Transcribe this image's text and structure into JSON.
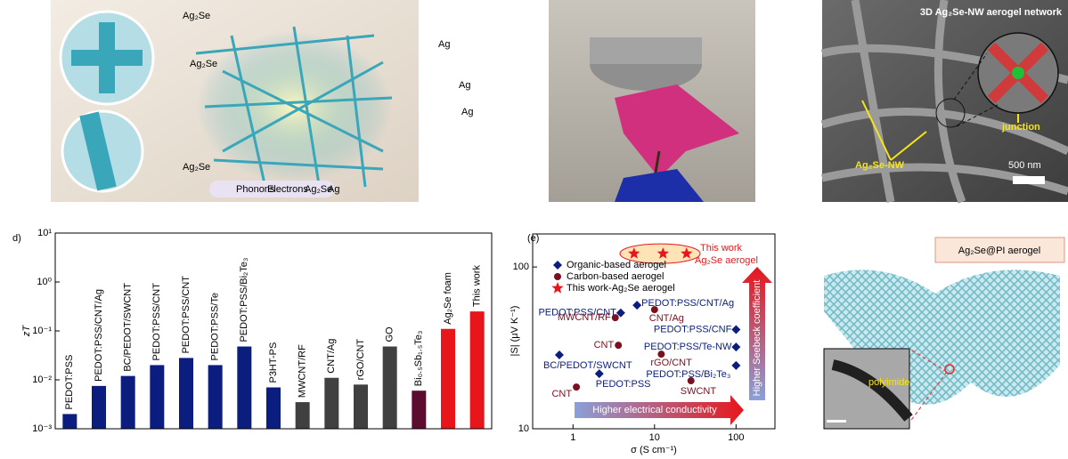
{
  "panels": {
    "a": {
      "labels": [
        "Ag₂Se",
        "Ag₂Se",
        "Ag₂Se",
        "Ag",
        "Ag",
        "Ag"
      ],
      "legend": [
        "Phonons",
        "Electrons",
        "Ag₂Se",
        "Ag"
      ]
    },
    "c": {
      "title": "3D Ag₂Se-NW aerogel network",
      "junction": "junction",
      "nw": "Ag₂Se-NW",
      "scale": "500 nm"
    },
    "f": {
      "title": "Ag₂Se@PI aerogel",
      "inset": "polyimide"
    }
  },
  "chart_data": [
    {
      "type": "bar",
      "panel_label": "d)",
      "ylabel": "zT",
      "ylog": true,
      "categories": [
        "PEDOT:PSS",
        "PEDOT:PSS/CNT/Ag",
        "BC/PEDOT/SWCNT",
        "PEDOT:PSS/CNT",
        "PEDOT:PSS/CNT",
        "PEDOT:PSS/Te",
        "PEDOT:PSS/Bi₂Te₃",
        "P3HT-PS",
        "MWCNT/RF",
        "CNT/Ag",
        "rGO/CNT",
        "GO",
        "Bi₀.₅Sb₁.₅Te₃",
        "Ag₂Se foam",
        "This work"
      ],
      "values": [
        0.002,
        0.0075,
        0.012,
        0.02,
        0.028,
        0.02,
        0.048,
        0.007,
        0.0035,
        0.011,
        0.008,
        0.048,
        0.006,
        0.11,
        0.25
      ],
      "colors": [
        "#0b1d7e",
        "#0b1d7e",
        "#0b1d7e",
        "#0b1d7e",
        "#0b1d7e",
        "#0b1d7e",
        "#0b1d7e",
        "#0b1d7e",
        "#404040",
        "#404040",
        "#404040",
        "#404040",
        "#5c0c2e",
        "#e8161b",
        "#e8161b"
      ],
      "ylim": [
        0.001,
        10
      ],
      "yticks": [
        {
          "value": 0.001,
          "label": "10⁻³"
        },
        {
          "value": 0.01,
          "label": "10⁻²"
        },
        {
          "value": 0.1,
          "label": "10⁻¹"
        },
        {
          "value": 1,
          "label": "10⁰"
        },
        {
          "value": 10,
          "label": "10¹"
        }
      ]
    },
    {
      "type": "scatter",
      "panel_label": "(e)",
      "xlabel": "σ (S cm⁻¹)",
      "ylabel": "|S| (μV K⁻¹)",
      "xlog": true,
      "ylog": true,
      "xlim": [
        0.32,
        300
      ],
      "ylim": [
        10,
        160
      ],
      "xticks": [
        1,
        10,
        100
      ],
      "yticks": [
        10,
        100
      ],
      "annotations": [
        "Higher electrical conductivity",
        "Higher Seebeck coefficient",
        "This work",
        "Ag₂Se aerogel"
      ],
      "series": [
        {
          "name": "Organic-based aerogel",
          "color": "#0b1d7e",
          "marker": "diamond",
          "x": [
            0.68,
            2.1,
            3.85,
            6.1,
            100,
            100,
            100
          ],
          "values": [
            28.6,
            21.9,
            52,
            58,
            41,
            32,
            24.6
          ],
          "labels": [
            "BC/PEDOT/SWCNT",
            "PEDOT:PSS",
            "PEDOT:PSS/CNT",
            "PEDOT:PSS/CNT/Ag",
            "PEDOT:PSS/CNF",
            "PEDOT:PSS/Te-NW",
            "PEDOT:PSS/Bi₂Te₃"
          ]
        },
        {
          "name": "Carbon-based aerogel",
          "color": "#7a1020",
          "marker": "circle",
          "x": [
            1.1,
            3.6,
            3.3,
            10,
            12.1,
            28
          ],
          "values": [
            18.1,
            32.8,
            48.6,
            54.5,
            28.9,
            19.8
          ],
          "labels": [
            "CNT",
            "CNT",
            "MWCNT/RF",
            "CNT/Ag",
            "rGO/CNT",
            "SWCNT"
          ]
        },
        {
          "name": "This work-Ag₂Se aerogel",
          "color": "#e8161b",
          "marker": "star",
          "x": [
            5.6,
            12.7,
            24.7
          ],
          "values": [
            121,
            121,
            121
          ]
        }
      ]
    }
  ]
}
